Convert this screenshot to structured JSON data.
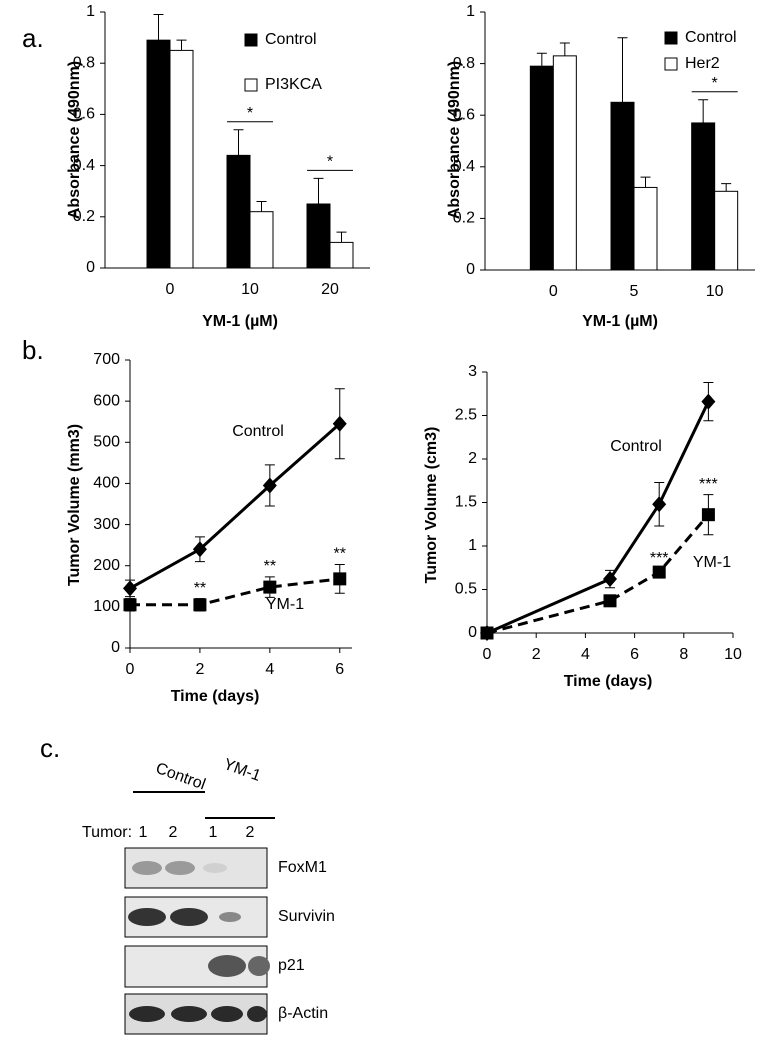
{
  "panels": [
    "a.",
    "b.",
    "c."
  ],
  "chart_data": [
    {
      "type": "bar",
      "categories": [
        "0",
        "10",
        "20"
      ],
      "xlabel": "YM-1 (µM)",
      "ylabel": "Absorbance (490nm)",
      "ylim": [
        0,
        1
      ],
      "yticks": [
        0,
        0.2,
        0.4,
        0.6,
        0.8,
        1
      ],
      "series": [
        {
          "name": "Control",
          "color": "#000000",
          "values": [
            0.89,
            0.44,
            0.25
          ],
          "errors": [
            0.1,
            0.1,
            0.1
          ]
        },
        {
          "name": "PI3KCA",
          "color": "#ffffff",
          "values": [
            0.85,
            0.22,
            0.1
          ],
          "errors": [
            0.04,
            0.04,
            0.04
          ]
        }
      ],
      "annotations": [
        {
          "x": "10",
          "text": "*"
        },
        {
          "x": "20",
          "text": "*"
        }
      ]
    },
    {
      "type": "bar",
      "categories": [
        "0",
        "5",
        "10"
      ],
      "xlabel": "YM-1 (µM)",
      "ylabel": "Absorbance (490nm)",
      "ylim": [
        0,
        1
      ],
      "yticks": [
        0,
        0.2,
        0.4,
        0.6,
        0.8,
        1
      ],
      "series": [
        {
          "name": "Control",
          "color": "#000000",
          "values": [
            0.79,
            0.65,
            0.57
          ],
          "errors": [
            0.05,
            0.25,
            0.09
          ]
        },
        {
          "name": "Her2",
          "color": "#ffffff",
          "values": [
            0.83,
            0.32,
            0.305
          ],
          "errors": [
            0.05,
            0.04,
            0.03
          ]
        }
      ],
      "annotations": [
        {
          "x": "10",
          "text": "*"
        }
      ]
    },
    {
      "type": "line",
      "x": [
        0,
        2,
        4,
        6
      ],
      "xlabel": "Time (days)",
      "ylabel": "Tumor Volume (mm3)",
      "xlim": [
        0,
        6.35
      ],
      "xticks": [
        0,
        2,
        4,
        6
      ],
      "ylim": [
        0,
        700
      ],
      "yticks": [
        0,
        100,
        200,
        300,
        400,
        500,
        600,
        700
      ],
      "series": [
        {
          "name": "Control",
          "color": "#000000",
          "marker": "diamond",
          "dashed": false,
          "values": [
            145,
            240,
            395,
            545
          ],
          "errors": [
            20,
            30,
            50,
            85
          ]
        },
        {
          "name": "YM-1",
          "color": "#000000",
          "marker": "square",
          "dashed": true,
          "values": [
            105,
            105,
            148,
            168
          ],
          "errors": [
            15,
            15,
            25,
            35
          ]
        }
      ],
      "annotations": [
        {
          "x": 2,
          "text": "**"
        },
        {
          "x": 4,
          "text": "**"
        },
        {
          "x": 6,
          "text": "**"
        }
      ]
    },
    {
      "type": "line",
      "x": [
        0,
        5,
        7,
        9
      ],
      "xlabel": "Time (days)",
      "ylabel": "Tumor Volume (cm3)",
      "xlim": [
        0,
        10
      ],
      "xticks": [
        0,
        2,
        4,
        6,
        8,
        10
      ],
      "ylim": [
        0,
        3
      ],
      "yticks": [
        0,
        0.5,
        1,
        1.5,
        2,
        2.5,
        3
      ],
      "series": [
        {
          "name": "Control",
          "color": "#000000",
          "marker": "diamond",
          "dashed": false,
          "values": [
            0,
            0.62,
            1.48,
            2.66
          ],
          "errors": [
            0.03,
            0.1,
            0.25,
            0.22
          ]
        },
        {
          "name": "YM-1",
          "color": "#000000",
          "marker": "square",
          "dashed": true,
          "values": [
            0,
            0.37,
            0.7,
            1.36
          ],
          "errors": [
            0.03,
            0.05,
            0.04,
            0.23
          ]
        }
      ],
      "annotations": [
        {
          "x": 7,
          "text": "***"
        },
        {
          "x": 9,
          "text": "***"
        }
      ]
    }
  ],
  "blot": {
    "groups": [
      "Control",
      "YM-1"
    ],
    "lane_label": "Tumor:",
    "lanes": [
      "1",
      "2",
      "1",
      "2"
    ],
    "bands": [
      "FoxM1",
      "Survivin",
      "p21",
      "β-Actin"
    ]
  }
}
